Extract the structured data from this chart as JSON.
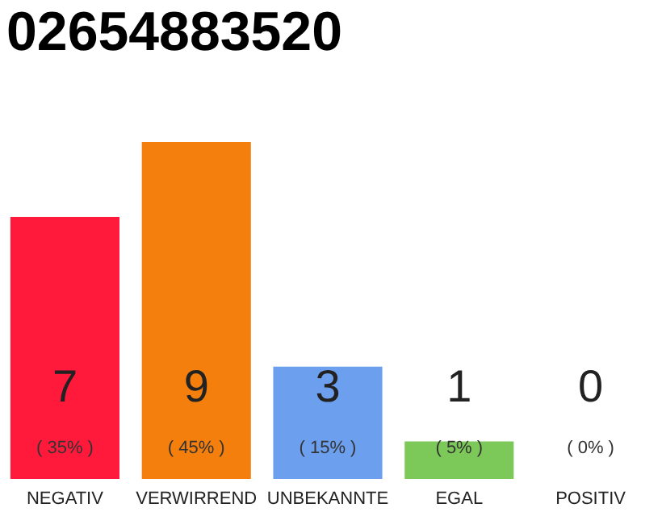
{
  "chart_data": {
    "type": "bar",
    "title": "02654883520",
    "categories": [
      "NEGATIV",
      "VERWIRREND",
      "UNBEKANNTE",
      "EGAL",
      "POSITIV"
    ],
    "values": [
      7,
      9,
      3,
      1,
      0
    ],
    "colors": [
      "#ff1a3c",
      "#f47f0c",
      "#6ca0ee",
      "#7cc95a",
      "#cccccc"
    ],
    "ylim": [
      0,
      9
    ],
    "tick_labels": "x",
    "data_labels": true,
    "annotations": [
      "( 35% )",
      "( 45% )",
      "( 15% )",
      "( 5% )",
      "( 0% )"
    ]
  }
}
